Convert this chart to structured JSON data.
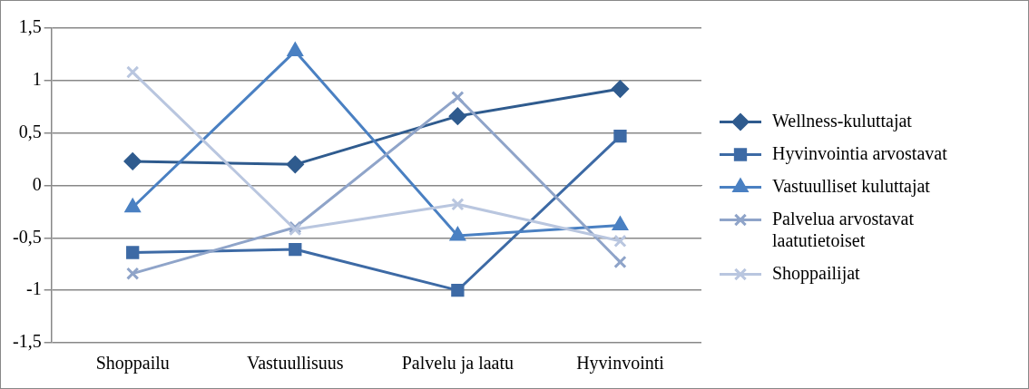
{
  "chart_data": {
    "type": "line",
    "categories": [
      "Shoppailu",
      "Vastuullisuus",
      "Palvelu ja laatu",
      "Hyvinvointi"
    ],
    "series": [
      {
        "name": "Wellness-kuluttajat",
        "color": "#2f5b8e",
        "marker": "diamond",
        "values": [
          0.23,
          0.2,
          0.66,
          0.92
        ]
      },
      {
        "name": "Hyvinvointia arvostavat",
        "color": "#3d6aa5",
        "marker": "square",
        "values": [
          -0.64,
          -0.61,
          -1.0,
          0.47
        ]
      },
      {
        "name": "Vastuulliset kuluttajat",
        "color": "#4a80c2",
        "marker": "triangle",
        "values": [
          -0.21,
          1.28,
          -0.48,
          -0.38
        ]
      },
      {
        "name": "Palvelua arvostavat laatutietoiset",
        "color": "#8fa4c9",
        "marker": "cross",
        "values": [
          -0.84,
          -0.4,
          0.84,
          -0.73
        ]
      },
      {
        "name": "Shoppailijat",
        "color": "#b9c6df",
        "marker": "cross",
        "values": [
          1.08,
          -0.42,
          -0.18,
          -0.53
        ]
      }
    ],
    "ylim": [
      -1.5,
      1.5
    ],
    "yticks": [
      {
        "value": -1.5,
        "label": "-1,5"
      },
      {
        "value": -1,
        "label": "-1"
      },
      {
        "value": -0.5,
        "label": "-0,5"
      },
      0,
      {
        "value": 0.5,
        "label": "0,5"
      },
      1,
      {
        "value": 1.5,
        "label": "1,5"
      }
    ],
    "grid": "y",
    "legend": "right",
    "line_style": "solid"
  }
}
